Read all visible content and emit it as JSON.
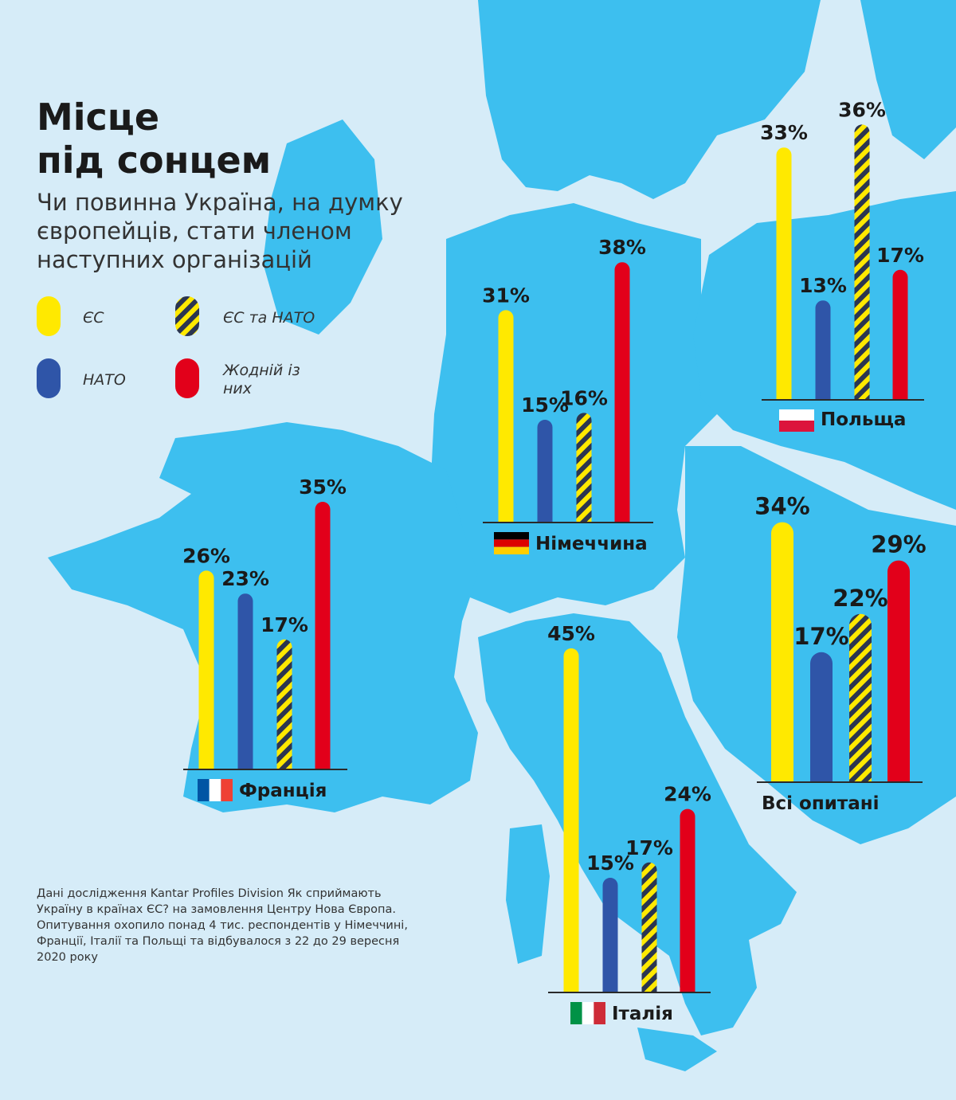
{
  "title": {
    "line1": "Місце",
    "line2": "під сонцем"
  },
  "subtitle": "Чи повинна Україна, на думку європейців, стати членом наступних організацій",
  "legend": [
    {
      "key": "eu",
      "label": "ЄС"
    },
    {
      "key": "eu_nato",
      "label": "ЄС та НАТО"
    },
    {
      "key": "nato",
      "label": "НАТО"
    },
    {
      "key": "none",
      "label": "Жодній із них"
    }
  ],
  "colors": {
    "eu": "#ffe900",
    "nato": "#2f55a8",
    "eu_nato_stripe": "#ffe900",
    "eu_nato_base": "#2b3550",
    "none": "#e2001a",
    "land": "#3dbfef",
    "sea": "#d6ecf8",
    "axis": "#2a2a2a"
  },
  "source": "Дані дослідження Kantar Profiles Division Як сприймають Україну в країнах ЄС? на замовлення Центру Нова Європа. Опитування охопило понад 4 тис. респондентів у Німеччині, Франції, Італії та Польщі та відбувалося з 22 до 29 вересня 2020 року",
  "chart_data": [
    {
      "type": "bar",
      "name": "Німеччина",
      "flag": "germany",
      "categories": [
        "ЄС",
        "НАТО",
        "ЄС та НАТО",
        "Жодній із них"
      ],
      "values": [
        31,
        15,
        16,
        38
      ],
      "labels": [
        "31%",
        "15%",
        "16%",
        "38%"
      ],
      "ylim": [
        0,
        45
      ]
    },
    {
      "type": "bar",
      "name": "Польща",
      "flag": "poland",
      "categories": [
        "ЄС",
        "НАТО",
        "ЄС та НАТО",
        "Жодній із них"
      ],
      "values": [
        33,
        13,
        36,
        17
      ],
      "labels": [
        "33%",
        "13%",
        "36%",
        "17%"
      ],
      "ylim": [
        0,
        45
      ]
    },
    {
      "type": "bar",
      "name": "Франція",
      "flag": "france",
      "categories": [
        "ЄС",
        "НАТО",
        "ЄС та НАТО",
        "Жодній із них"
      ],
      "values": [
        26,
        23,
        17,
        35
      ],
      "labels": [
        "26%",
        "23%",
        "17%",
        "35%"
      ],
      "ylim": [
        0,
        45
      ]
    },
    {
      "type": "bar",
      "name": "Італія",
      "flag": "italy",
      "categories": [
        "ЄС",
        "НАТО",
        "ЄС та НАТО",
        "Жодній із них"
      ],
      "values": [
        45,
        15,
        17,
        24
      ],
      "labels": [
        "45%",
        "15%",
        "17%",
        "24%"
      ],
      "ylim": [
        0,
        45
      ]
    },
    {
      "type": "bar",
      "name": "Всі опитані",
      "flag": "",
      "categories": [
        "ЄС",
        "НАТО",
        "ЄС та НАТО",
        "Жодній із них"
      ],
      "values": [
        34,
        17,
        22,
        29
      ],
      "labels": [
        "34%",
        "17%",
        "22%",
        "29%"
      ],
      "ylim": [
        0,
        45
      ]
    }
  ]
}
